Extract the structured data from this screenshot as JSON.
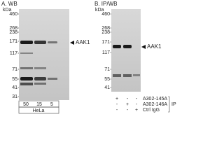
{
  "panel_a": {
    "title": "A. WB",
    "unit": "kDa",
    "markers": [
      "460",
      "268",
      "238",
      "171",
      "117",
      "71",
      "55",
      "41",
      "31"
    ],
    "target": "AAK1",
    "lanes": [
      "50",
      "15",
      "5"
    ],
    "cell_line": "HeLa"
  },
  "panel_b": {
    "title": "B. IP/WB",
    "unit": "kDa",
    "markers": [
      "460",
      "268",
      "238",
      "171",
      "117",
      "71",
      "55",
      "41"
    ],
    "target": "AAK1",
    "rows": [
      {
        "label": "A302-145A",
        "signs": [
          "+",
          "-",
          "-"
        ]
      },
      {
        "label": "A302-146A",
        "signs": [
          "-",
          "+",
          "-"
        ]
      },
      {
        "label": "Ctrl IgG",
        "signs": [
          "-",
          "-",
          "+"
        ]
      }
    ],
    "group": "IP"
  }
}
